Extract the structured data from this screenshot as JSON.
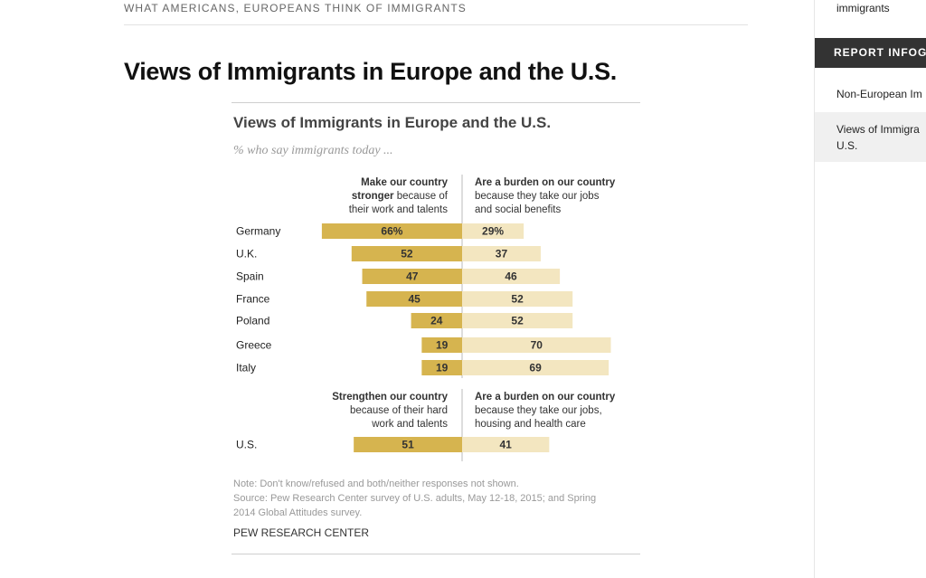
{
  "article": {
    "kicker": "WHAT AMERICANS, EUROPEANS THINK OF IMMIGRANTS",
    "title": "Views of Immigrants in Europe and the U.S."
  },
  "sidebar": {
    "top_link": "immigrants",
    "header": "REPORT INFOG",
    "items": [
      {
        "label_lines": [
          "Non-European Im"
        ]
      },
      {
        "label_lines": [
          "Views of Immigra",
          "U.S."
        ]
      }
    ]
  },
  "chart_data": {
    "type": "bar",
    "title": "Views of Immigrants in Europe and the U.S.",
    "subtitle": "% who say immigrants today ...",
    "europe": {
      "left_header": {
        "bold": [
          "Make our country",
          "stronger"
        ],
        "normal": [
          "because of",
          "their work and talents"
        ]
      },
      "right_header": {
        "bold": [
          "Are a burden on our country"
        ],
        "normal": [
          "because they take our jobs",
          "and social benefits"
        ]
      },
      "categories": [
        "Germany",
        "U.K.",
        "Spain",
        "France",
        "Poland",
        "Greece",
        "Italy"
      ],
      "series": [
        {
          "name": "Make our country stronger",
          "values": [
            66,
            52,
            47,
            45,
            24,
            19,
            19
          ],
          "labels": [
            "66%",
            "52",
            "47",
            "45",
            "24",
            "19",
            "19"
          ],
          "color": "#d6b44f"
        },
        {
          "name": "Are a burden on our country",
          "values": [
            29,
            37,
            46,
            52,
            52,
            70,
            69
          ],
          "labels": [
            "29%",
            "37",
            "46",
            "52",
            "52",
            "70",
            "69"
          ],
          "color": "#f3e6c0"
        }
      ]
    },
    "us": {
      "left_header": {
        "bold": [
          "Strengthen our country"
        ],
        "normal": [
          "because of their hard",
          "work and talents"
        ]
      },
      "right_header": {
        "bold": [
          "Are a burden on our country"
        ],
        "normal": [
          "because they take our jobs,",
          "housing and health care"
        ]
      },
      "categories": [
        "U.S."
      ],
      "series": [
        {
          "name": "Strengthen our country",
          "values": [
            51
          ],
          "labels": [
            "51"
          ],
          "color": "#d6b44f"
        },
        {
          "name": "Are a burden on our country",
          "values": [
            41
          ],
          "labels": [
            "41"
          ],
          "color": "#f3e6c0"
        }
      ]
    },
    "notes": [
      "Note: Don't know/refused and both/neither responses not shown.",
      "Source: Pew Research Center survey of U.S. adults, May 12-18, 2015; and Spring",
      "2014 Global Attitudes survey."
    ],
    "source_label": "PEW RESEARCH CENTER",
    "legend": "none",
    "grid": false
  }
}
